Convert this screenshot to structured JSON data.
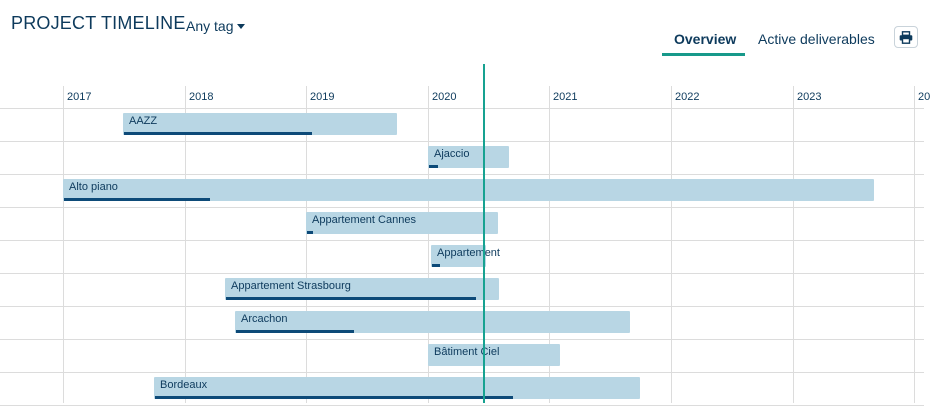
{
  "header": {
    "title": "PROJECT TIMELINE",
    "tag_filter": "Any tag"
  },
  "tabs": [
    {
      "label": "Overview",
      "active": true
    },
    {
      "label": "Active deliverables",
      "active": false
    }
  ],
  "print_icon": "printer-icon",
  "colors": {
    "bar": "#b8d6e4",
    "progress": "#0d4a78",
    "today_line": "#17a291",
    "accent": "#17998a"
  },
  "timeline": {
    "years": [
      "2017",
      "2018",
      "2019",
      "2020",
      "2021",
      "2022",
      "2023",
      "20"
    ],
    "today": "2020-06-15",
    "projects": [
      {
        "name": "AAZZ",
        "start": "2017-07-01",
        "end": "2019-10-01",
        "progress": 0.69
      },
      {
        "name": "Ajaccio",
        "start": "2020-01-01",
        "end": "2020-09-01",
        "progress": 0.11
      },
      {
        "name": "Alto piano",
        "start": "2017-01-01",
        "end": "2023-09-01",
        "progress": 0.18
      },
      {
        "name": "Appartement Cannes",
        "start": "2019-01-01",
        "end": "2020-08-01",
        "progress": 0.03
      },
      {
        "name": "Appartement",
        "start": "2020-01-10",
        "end": "2020-06-25",
        "progress": 0.15
      },
      {
        "name": "Appartement Strasbourg",
        "start": "2018-05-01",
        "end": "2020-08-01",
        "progress": 0.92
      },
      {
        "name": "Arcachon",
        "start": "2018-06-01",
        "end": "2021-09-01",
        "progress": 0.3
      },
      {
        "name": "Bâtiment Ciel",
        "start": "2020-01-01",
        "end": "2021-02-01",
        "progress": 0
      },
      {
        "name": "Bordeaux",
        "start": "2017-10-01",
        "end": "2021-10-01",
        "progress": 0.74
      }
    ]
  }
}
